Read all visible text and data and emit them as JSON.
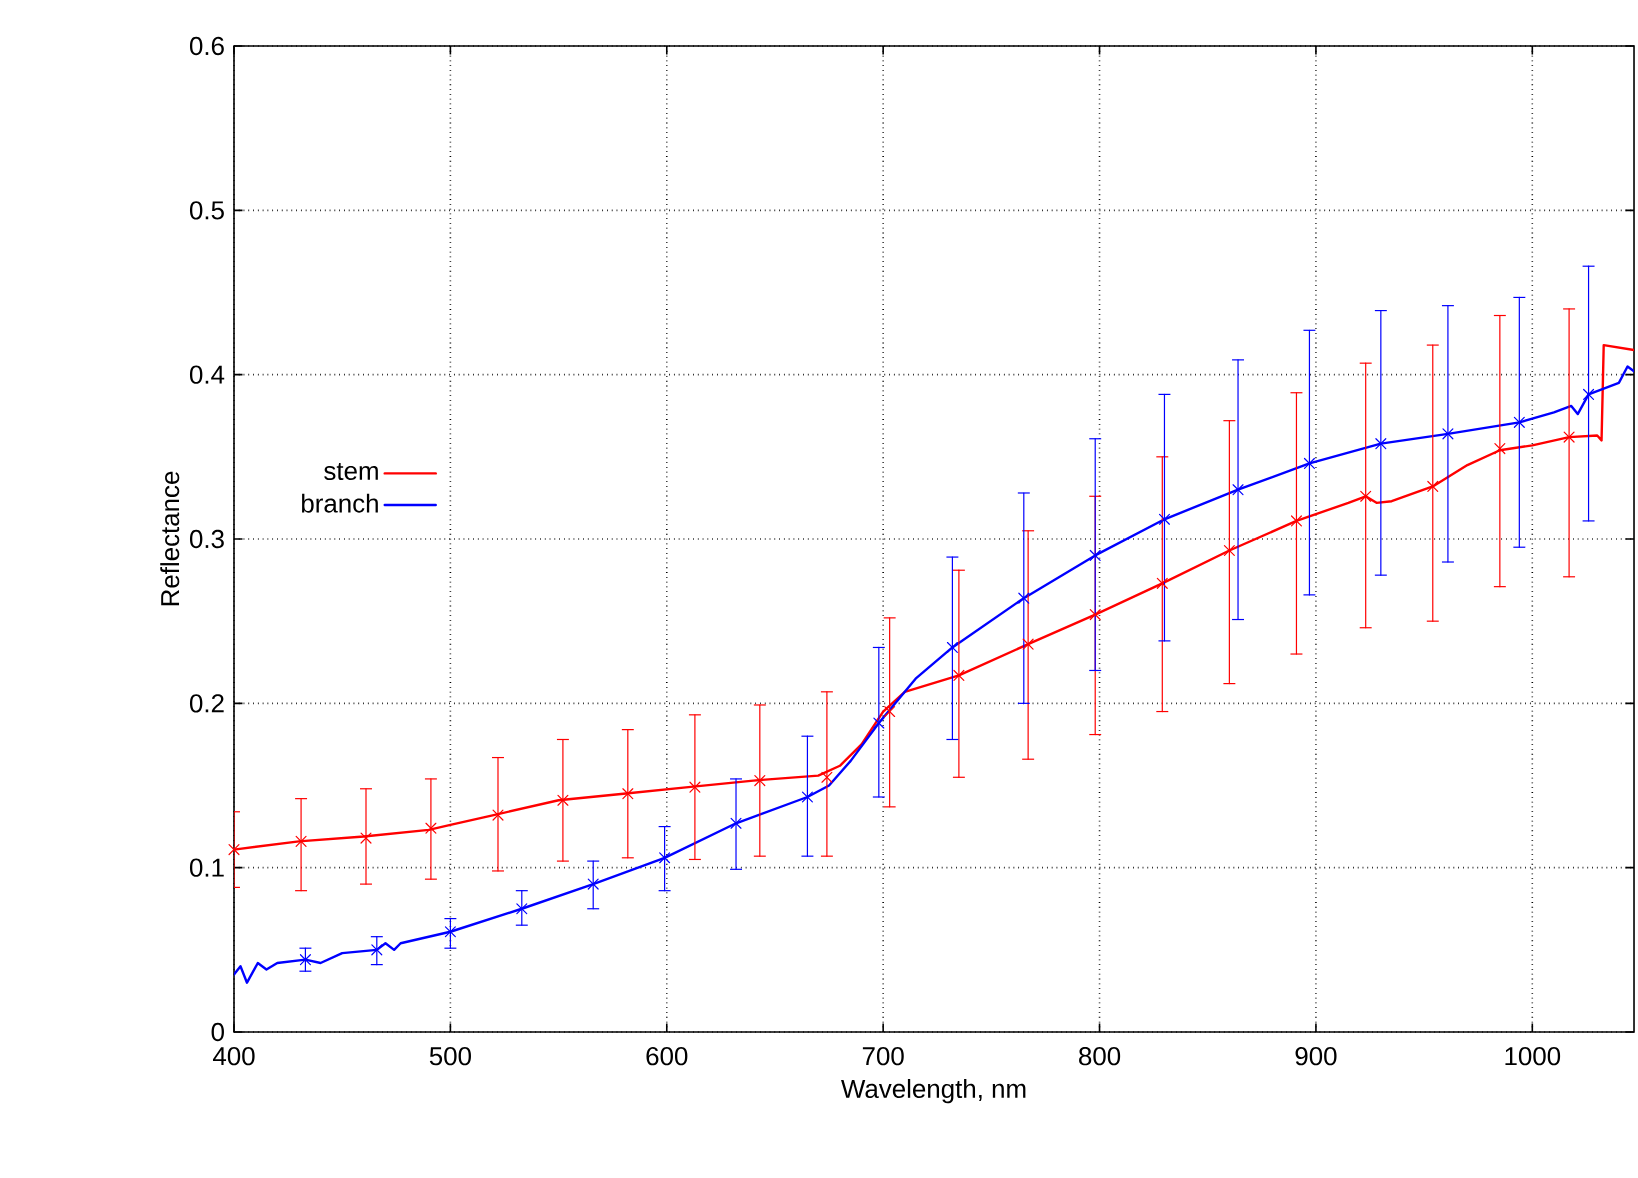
{
  "chart_data": {
    "type": "line",
    "xlabel": "Wavelength, nm",
    "ylabel": "Reflectance",
    "xlim": [
      400,
      1047
    ],
    "ylim": [
      0,
      0.6
    ],
    "xticks": [
      400,
      500,
      600,
      700,
      800,
      900,
      1000
    ],
    "yticks": [
      0,
      0.1,
      0.2,
      0.3,
      0.4,
      0.5,
      0.6
    ],
    "grid": true,
    "legend": "left",
    "line_style": "solid",
    "marker": "none",
    "series": [
      {
        "name": "stem",
        "color": "#ff0000",
        "x": [
          400,
          430,
          460,
          490,
          500,
          520,
          550,
          580,
          610,
          640,
          670,
          680,
          690,
          700,
          710,
          735,
          767,
          798,
          829,
          860,
          891,
          915,
          923,
          928,
          935,
          954,
          970,
          985,
          1000,
          1017,
          1030,
          1032,
          1033,
          1047
        ],
        "values": [
          0.111,
          0.116,
          0.119,
          0.123,
          0.126,
          0.132,
          0.141,
          0.145,
          0.149,
          0.153,
          0.156,
          0.162,
          0.175,
          0.195,
          0.207,
          0.217,
          0.236,
          0.254,
          0.273,
          0.293,
          0.311,
          0.322,
          0.326,
          0.322,
          0.323,
          0.332,
          0.345,
          0.354,
          0.357,
          0.362,
          0.363,
          0.36,
          0.418,
          0.415
        ]
      },
      {
        "name": "branch",
        "color": "#0000ff",
        "x": [
          400,
          403,
          406,
          411,
          415,
          420,
          433,
          440,
          450,
          466,
          470,
          474,
          477,
          500,
          533,
          566,
          599,
          632,
          665,
          675,
          685,
          698,
          715,
          732,
          765,
          798,
          830,
          864,
          897,
          930,
          961,
          994,
          1010,
          1018,
          1021,
          1026,
          1040,
          1044,
          1047
        ],
        "values": [
          0.035,
          0.04,
          0.03,
          0.042,
          0.038,
          0.042,
          0.044,
          0.042,
          0.048,
          0.05,
          0.054,
          0.05,
          0.054,
          0.061,
          0.075,
          0.09,
          0.106,
          0.127,
          0.143,
          0.15,
          0.165,
          0.188,
          0.215,
          0.234,
          0.264,
          0.29,
          0.312,
          0.33,
          0.346,
          0.358,
          0.364,
          0.371,
          0.377,
          0.381,
          0.376,
          0.388,
          0.395,
          0.405,
          0.402
        ]
      },
      {
        "color": "#ff0000",
        "type": "scatter",
        "marker": "cross",
        "x": [
          400,
          431,
          461,
          491,
          522,
          552,
          582,
          613,
          643,
          674,
          703,
          735,
          767,
          798,
          829,
          860,
          891,
          923,
          954,
          985,
          1017
        ],
        "values": [
          0.111,
          0.116,
          0.118,
          0.124,
          0.132,
          0.141,
          0.145,
          0.149,
          0.153,
          0.155,
          0.195,
          0.217,
          0.236,
          0.254,
          0.273,
          0.293,
          0.311,
          0.326,
          0.332,
          0.355,
          0.362
        ],
        "errors": [
          [
            0.088,
            0.134
          ],
          [
            0.086,
            0.142
          ],
          [
            0.09,
            0.148
          ],
          [
            0.093,
            0.154
          ],
          [
            0.098,
            0.167
          ],
          [
            0.104,
            0.178
          ],
          [
            0.106,
            0.184
          ],
          [
            0.105,
            0.193
          ],
          [
            0.107,
            0.199
          ],
          [
            0.107,
            0.207
          ],
          [
            0.137,
            0.252
          ],
          [
            0.155,
            0.281
          ],
          [
            0.166,
            0.305
          ],
          [
            0.181,
            0.326
          ],
          [
            0.195,
            0.35
          ],
          [
            0.212,
            0.372
          ],
          [
            0.23,
            0.389
          ],
          [
            0.246,
            0.407
          ],
          [
            0.25,
            0.418
          ],
          [
            0.271,
            0.436
          ],
          [
            0.277,
            0.44
          ]
        ]
      },
      {
        "color": "#0000ff",
        "type": "scatter",
        "marker": "cross",
        "x": [
          433,
          466,
          500,
          533,
          566,
          599,
          632,
          665,
          698,
          732,
          765,
          798,
          830,
          864,
          897,
          930,
          961,
          994,
          1026
        ],
        "values": [
          0.044,
          0.05,
          0.061,
          0.075,
          0.09,
          0.106,
          0.127,
          0.143,
          0.188,
          0.234,
          0.264,
          0.29,
          0.312,
          0.33,
          0.346,
          0.358,
          0.364,
          0.371,
          0.388
        ],
        "errors": [
          [
            0.037,
            0.051
          ],
          [
            0.041,
            0.058
          ],
          [
            0.051,
            0.069
          ],
          [
            0.065,
            0.086
          ],
          [
            0.075,
            0.104
          ],
          [
            0.086,
            0.125
          ],
          [
            0.099,
            0.154
          ],
          [
            0.107,
            0.18
          ],
          [
            0.143,
            0.234
          ],
          [
            0.178,
            0.289
          ],
          [
            0.2,
            0.328
          ],
          [
            0.22,
            0.361
          ],
          [
            0.238,
            0.388
          ],
          [
            0.251,
            0.409
          ],
          [
            0.266,
            0.427
          ],
          [
            0.278,
            0.439
          ],
          [
            0.286,
            0.442
          ],
          [
            0.295,
            0.447
          ],
          [
            0.311,
            0.466
          ]
        ]
      }
    ]
  }
}
